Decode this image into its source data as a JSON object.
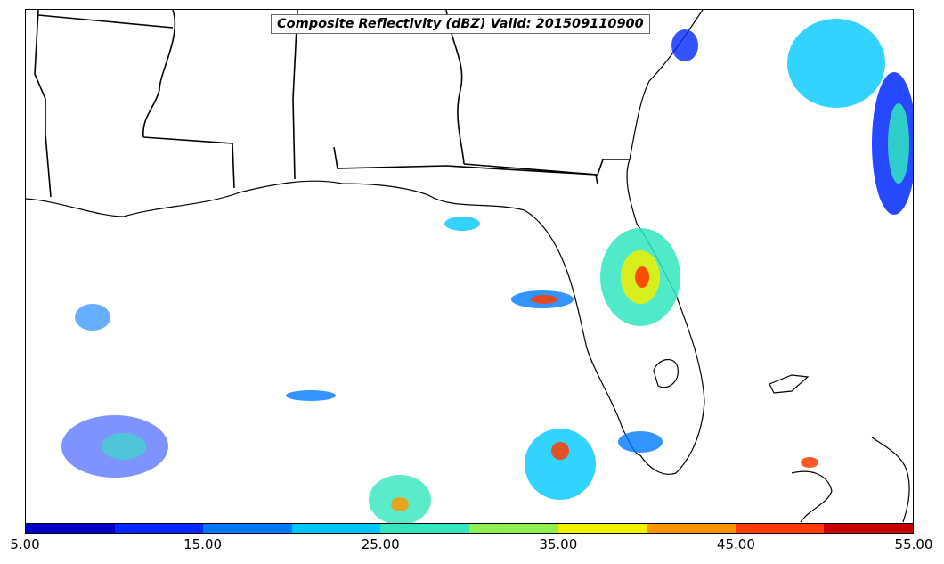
{
  "map": {
    "title": "Composite Reflectivity (dBZ) Valid: 201509110900"
  },
  "colorbar": {
    "colors": [
      "#0000c8",
      "#0028ff",
      "#0078ff",
      "#00c8ff",
      "#32e6be",
      "#8cf050",
      "#f0f000",
      "#ff9600",
      "#ff3c00",
      "#c80000"
    ],
    "tick_labels": [
      "5.00",
      "15.00",
      "25.00",
      "35.00",
      "45.00",
      "55.00"
    ],
    "min": 5,
    "max": 55,
    "unit": "dBZ"
  },
  "colors": {
    "coastline": "#000000",
    "state_border": "#000000",
    "background": "#ffffff"
  }
}
